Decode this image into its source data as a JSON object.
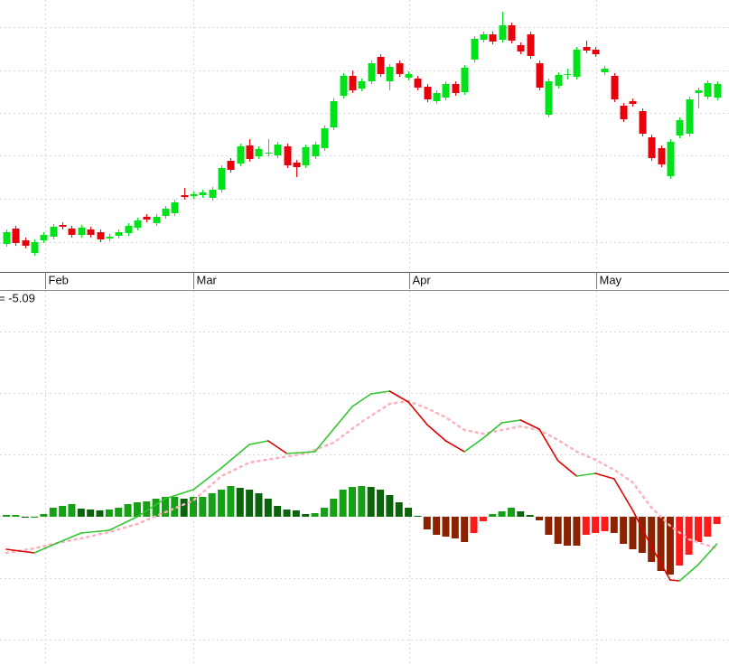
{
  "chart_data": [
    {
      "type": "candlestick",
      "open": [
        30,
        47,
        34,
        20,
        34,
        38,
        51,
        47,
        40,
        46,
        43,
        36,
        39,
        42,
        48,
        60,
        53,
        61,
        64,
        84,
        83,
        84,
        81,
        90,
        122,
        119,
        139,
        127,
        130,
        128,
        138,
        120,
        117,
        127,
        136,
        159,
        194,
        216,
        202,
        210,
        237,
        210,
        230,
        214,
        213,
        204,
        188,
        192,
        207,
        198,
        234,
        256,
        262,
        256,
        272,
        250,
        262,
        230,
        173,
        205,
        218,
        215,
        248,
        245,
        220,
        216,
        183,
        188,
        177,
        148,
        136,
        105,
        150,
        152,
        197,
        193,
        192
      ],
      "high": [
        46,
        50,
        37,
        35,
        43,
        52,
        54,
        50,
        51,
        49,
        46,
        41,
        46,
        53,
        59,
        63,
        63,
        72,
        79,
        92,
        88,
        90,
        93,
        117,
        125,
        141,
        146,
        138,
        146,
        143,
        141,
        123,
        140,
        143,
        161,
        191,
        219,
        222,
        213,
        233,
        240,
        229,
        233,
        221,
        216,
        207,
        200,
        210,
        210,
        228,
        260,
        265,
        265,
        287,
        275,
        253,
        265,
        233,
        213,
        220,
        224,
        248,
        255,
        248,
        227,
        219,
        186,
        191,
        180,
        151,
        139,
        146,
        170,
        193,
        203,
        211,
        210
      ],
      "low": [
        27,
        28,
        25,
        17,
        31,
        35,
        46,
        37,
        37,
        37,
        32,
        33,
        36,
        39,
        45,
        54,
        50,
        58,
        61,
        79,
        80,
        81,
        78,
        87,
        109,
        116,
        121,
        124,
        127,
        125,
        114,
        104,
        114,
        124,
        133,
        156,
        191,
        197,
        199,
        207,
        215,
        200,
        215,
        211,
        200,
        187,
        185,
        189,
        194,
        195,
        231,
        253,
        251,
        253,
        252,
        240,
        235,
        200,
        170,
        202,
        212,
        212,
        241,
        237,
        217,
        187,
        165,
        182,
        149,
        122,
        115,
        102,
        147,
        149,
        180,
        190,
        189
      ],
      "close": [
        43,
        31,
        28,
        32,
        40,
        49,
        49,
        40,
        48,
        40,
        35,
        38,
        43,
        50,
        56,
        57,
        60,
        69,
        76,
        82,
        85,
        87,
        90,
        114,
        112,
        138,
        124,
        135,
        131,
        140,
        117,
        115,
        137,
        140,
        158,
        188,
        216,
        200,
        210,
        230,
        218,
        226,
        218,
        218,
        203,
        190,
        197,
        207,
        197,
        225,
        257,
        262,
        254,
        272,
        255,
        243,
        238,
        203,
        210,
        217,
        218,
        245,
        244,
        240,
        224,
        190,
        168,
        185,
        152,
        125,
        118,
        143,
        167,
        190,
        200,
        208,
        207
      ],
      "xlim": [
        -0.676,
        77.29
      ],
      "ylim": [
        0,
        300
      ],
      "xticks": [
        {
          "value": 4.15,
          "label": "Feb"
        },
        {
          "value": 20,
          "label": "Mar"
        },
        {
          "value": 43.1,
          "label": "Apr"
        },
        {
          "value": 63.1,
          "label": "May"
        }
      ],
      "up_color": "#00e31a",
      "down_color": "#e8000b",
      "grid": true
    },
    {
      "type": "macd",
      "label": "= -5.09",
      "xlim": [
        -0.676,
        77.29
      ],
      "ylim": [
        -163,
        250
      ],
      "histogram": {
        "values": [
          2,
          2,
          0,
          0,
          3,
          10,
          12,
          14,
          9,
          8,
          7,
          8,
          10,
          14,
          16,
          17,
          20,
          22,
          22,
          20,
          22,
          22,
          26,
          30,
          34,
          32,
          30,
          26,
          20,
          12,
          8,
          7,
          3,
          4,
          10,
          20,
          30,
          33,
          34,
          33,
          30,
          24,
          16,
          10,
          1,
          -14,
          -20,
          -22,
          -24,
          -28,
          -18,
          -5,
          3,
          6,
          10,
          6,
          2,
          -4,
          -20,
          -30,
          -32,
          -32,
          -20,
          -18,
          -16,
          -18,
          -30,
          -36,
          -40,
          -50,
          -60,
          -64,
          -54,
          -42,
          -28,
          -22,
          -8
        ],
        "colors": {
          "pos_up": "#15a015",
          "pos_down": "#0b640b",
          "neg_down": "#8b2200",
          "neg_up": "#ff1a1a"
        }
      },
      "macd": {
        "x": [
          0,
          3,
          5,
          8,
          11,
          14,
          17,
          20,
          23,
          26,
          28,
          30,
          33,
          35,
          37,
          39,
          41,
          43,
          45,
          47,
          49,
          51,
          53,
          55,
          57,
          59,
          61,
          63,
          65,
          67,
          69,
          71,
          72,
          74,
          76
        ],
        "values": [
          -36,
          -40,
          -31,
          -18,
          -15,
          0,
          20,
          30,
          54,
          80,
          84,
          70,
          72,
          97,
          122,
          136,
          139,
          127,
          102,
          84,
          72,
          87,
          104,
          107,
          97,
          62,
          45,
          48,
          42,
          7,
          -33,
          -70,
          -71,
          -53,
          -30
        ],
        "up_color": "#2ec82e",
        "down_color": "#e00000"
      },
      "signal": {
        "x": [
          0,
          3,
          5,
          8,
          11,
          14,
          17,
          20,
          23,
          26,
          29,
          32,
          35,
          38,
          41,
          43,
          45,
          47,
          49,
          51,
          53,
          55,
          57,
          59,
          61,
          63,
          65,
          67,
          69,
          71,
          73,
          76
        ],
        "values": [
          -40,
          -35,
          -30,
          -24,
          -17,
          -8,
          5,
          18,
          45,
          60,
          65,
          70,
          82,
          105,
          125,
          128,
          120,
          110,
          96,
          92,
          96,
          100,
          96,
          85,
          72,
          63,
          52,
          38,
          10,
          -10,
          -25,
          -35
        ],
        "color": "#ffb0bc"
      },
      "grid": true
    }
  ]
}
